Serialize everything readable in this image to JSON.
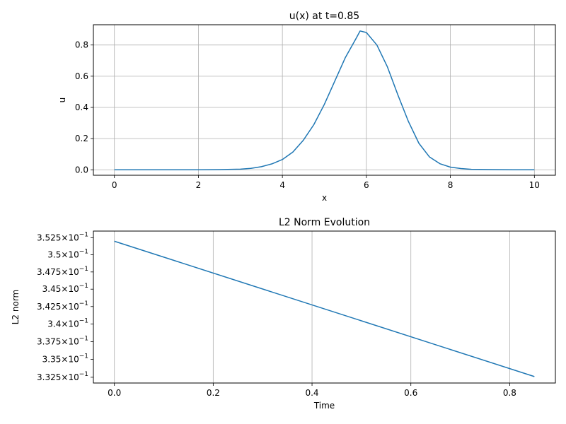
{
  "chart_data": [
    {
      "type": "line",
      "title": "u(x) at t=0.85",
      "xlabel": "x",
      "ylabel": "u",
      "xlim": [
        -0.5,
        10.5
      ],
      "ylim": [
        -0.035,
        0.93
      ],
      "grid": true,
      "xticks": [
        0,
        2,
        4,
        6,
        8,
        10
      ],
      "xtick_labels": [
        "0",
        "2",
        "4",
        "6",
        "8",
        "10"
      ],
      "yticks": [
        0.0,
        0.2,
        0.4,
        0.6,
        0.8
      ],
      "ytick_labels": [
        "0.0",
        "0.2",
        "0.4",
        "0.6",
        "0.8"
      ],
      "series": [
        {
          "color": "#1f77b4",
          "x": [
            0,
            0.5,
            1,
            1.5,
            2,
            2.5,
            3,
            3.25,
            3.5,
            3.75,
            4,
            4.25,
            4.5,
            4.75,
            5,
            5.25,
            5.5,
            5.75,
            5.85,
            6,
            6.25,
            6.5,
            6.75,
            7,
            7.25,
            7.5,
            7.75,
            8,
            8.25,
            8.5,
            9,
            9.5,
            10
          ],
          "y": [
            0,
            0,
            0,
            0,
            0,
            0.001,
            0.004,
            0.009,
            0.02,
            0.038,
            0.066,
            0.114,
            0.19,
            0.29,
            0.42,
            0.57,
            0.72,
            0.84,
            0.89,
            0.88,
            0.8,
            0.66,
            0.48,
            0.31,
            0.17,
            0.083,
            0.039,
            0.017,
            0.008,
            0.003,
            0.001,
            0,
            0
          ]
        }
      ]
    },
    {
      "type": "line",
      "title": "L2 Norm Evolution",
      "xlabel": "Time",
      "ylabel": "L2 norm",
      "yscale": "log",
      "xlim": [
        -0.0425,
        0.8925
      ],
      "ylim": [
        0.3317,
        0.3535
      ],
      "grid": "x",
      "xticks": [
        0.0,
        0.2,
        0.4,
        0.6,
        0.8
      ],
      "xtick_labels": [
        "0.0",
        "0.2",
        "0.4",
        "0.6",
        "0.8"
      ],
      "yticks": [
        0.3325,
        0.335,
        0.3375,
        0.34,
        0.3425,
        0.345,
        0.3475,
        0.35,
        0.3525
      ],
      "ytick_labels": [
        {
          "mantissa": "3.325",
          "base": "10",
          "exp": "−1"
        },
        {
          "mantissa": "3.35",
          "base": "10",
          "exp": "−1"
        },
        {
          "mantissa": "3.375",
          "base": "10",
          "exp": "−1"
        },
        {
          "mantissa": "3.4",
          "base": "10",
          "exp": "−1"
        },
        {
          "mantissa": "3.425",
          "base": "10",
          "exp": "−1"
        },
        {
          "mantissa": "3.45",
          "base": "10",
          "exp": "−1"
        },
        {
          "mantissa": "3.475",
          "base": "10",
          "exp": "−1"
        },
        {
          "mantissa": "3.5",
          "base": "10",
          "exp": "−1"
        },
        {
          "mantissa": "3.525",
          "base": "10",
          "exp": "−1"
        }
      ],
      "series": [
        {
          "color": "#1f77b4",
          "x": [
            0.0,
            0.85
          ],
          "y": [
            0.352,
            0.3326
          ]
        }
      ]
    }
  ]
}
